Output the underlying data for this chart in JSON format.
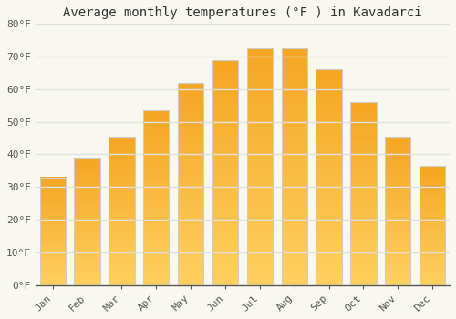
{
  "title": "Average monthly temperatures (°F ) in Kavadarci",
  "months": [
    "Jan",
    "Feb",
    "Mar",
    "Apr",
    "May",
    "Jun",
    "Jul",
    "Aug",
    "Sep",
    "Oct",
    "Nov",
    "Dec"
  ],
  "values": [
    33,
    39,
    45.5,
    53.5,
    62,
    69,
    72.5,
    72.5,
    66,
    56,
    45.5,
    36.5
  ],
  "bar_color_dark": "#F5A623",
  "bar_color_light": "#FFD060",
  "bar_edge_color": "#CCCCCC",
  "ylim": [
    0,
    80
  ],
  "yticks": [
    0,
    10,
    20,
    30,
    40,
    50,
    60,
    70,
    80
  ],
  "ytick_labels": [
    "0°F",
    "10°F",
    "20°F",
    "30°F",
    "40°F",
    "50°F",
    "60°F",
    "70°F",
    "80°F"
  ],
  "background_color": "#F8F8F0",
  "grid_color": "#E0E0E0",
  "title_fontsize": 10,
  "tick_fontsize": 8,
  "font_family": "monospace"
}
